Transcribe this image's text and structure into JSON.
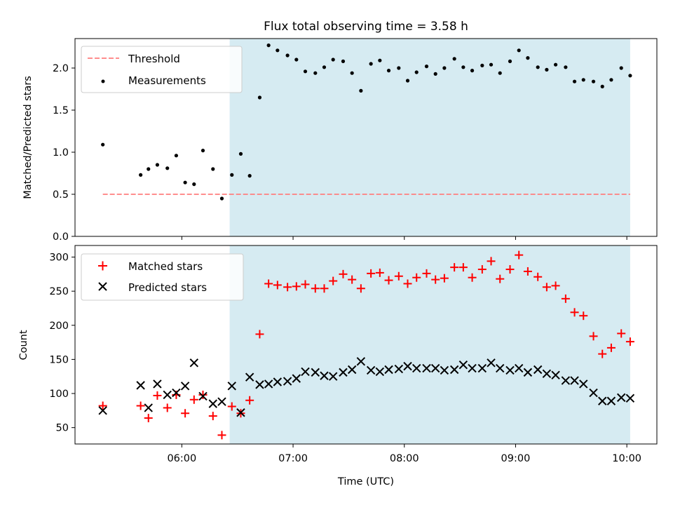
{
  "figure": {
    "title": "Flux total observing time = 3.58 h",
    "xlabel": "Time (UTC)"
  },
  "chart_data": [
    {
      "type": "scatter",
      "ylabel": "Matched/Predicted stars",
      "xlim_hours": [
        5.04,
        10.27
      ],
      "ylim": [
        0.0,
        2.35
      ],
      "yticks": [
        0.0,
        0.5,
        1.0,
        1.5,
        2.0
      ],
      "ytick_labels": [
        "0.0",
        "0.5",
        "1.0",
        "1.5",
        "2.0"
      ],
      "shaded_span_hours": [
        6.43,
        10.03
      ],
      "legend_position": "upper left",
      "threshold": {
        "name": "Threshold",
        "value": 0.5,
        "x_range_hours": [
          5.29,
          10.03
        ],
        "color": "#ff7f7f",
        "style": "dashed"
      },
      "series": [
        {
          "name": "Measurements",
          "color": "#000000",
          "marker": "dot",
          "x_hours": [
            5.29,
            5.63,
            5.7,
            5.78,
            5.87,
            5.95,
            6.03,
            6.11,
            6.19,
            6.28,
            6.36,
            6.45,
            6.53,
            6.61,
            6.7,
            6.78,
            6.86,
            6.95,
            7.03,
            7.11,
            7.2,
            7.28,
            7.36,
            7.45,
            7.53,
            7.61,
            7.7,
            7.78,
            7.86,
            7.95,
            8.03,
            8.11,
            8.2,
            8.28,
            8.36,
            8.45,
            8.53,
            8.61,
            8.7,
            8.78,
            8.86,
            8.95,
            9.03,
            9.11,
            9.2,
            9.28,
            9.36,
            9.45,
            9.53,
            9.61,
            9.7,
            9.78,
            9.86,
            9.95,
            10.03
          ],
          "y": [
            1.09,
            0.73,
            0.8,
            0.85,
            0.81,
            0.96,
            0.64,
            0.62,
            1.02,
            0.8,
            0.45,
            0.73,
            0.98,
            0.72,
            1.65,
            2.27,
            2.21,
            2.15,
            2.1,
            1.96,
            1.94,
            2.01,
            2.1,
            2.08,
            1.94,
            1.73,
            2.05,
            2.09,
            1.97,
            2.0,
            1.85,
            1.95,
            2.02,
            1.93,
            2.0,
            2.11,
            2.01,
            1.97,
            2.03,
            2.04,
            1.94,
            2.08,
            2.21,
            2.12,
            2.01,
            1.98,
            2.04,
            2.01,
            1.84,
            1.86,
            1.84,
            1.78,
            1.86,
            2.0,
            1.91
          ]
        }
      ]
    },
    {
      "type": "scatter",
      "ylabel": "Count",
      "xlim_hours": [
        5.04,
        10.27
      ],
      "ylim": [
        26,
        317
      ],
      "yticks": [
        50,
        100,
        150,
        200,
        250,
        300
      ],
      "ytick_labels": [
        "50",
        "100",
        "150",
        "200",
        "250",
        "300"
      ],
      "xticks_hours": [
        6,
        7,
        8,
        9,
        10
      ],
      "xtick_labels": [
        "06:00",
        "07:00",
        "08:00",
        "09:00",
        "10:00"
      ],
      "shaded_span_hours": [
        6.43,
        10.03
      ],
      "legend_position": "upper left",
      "series": [
        {
          "name": "Matched stars",
          "color": "#ff0000",
          "marker": "plus",
          "x_hours": [
            5.29,
            5.63,
            5.7,
            5.78,
            5.87,
            5.95,
            6.03,
            6.11,
            6.19,
            6.28,
            6.36,
            6.45,
            6.53,
            6.61,
            6.7,
            6.78,
            6.86,
            6.95,
            7.03,
            7.11,
            7.2,
            7.28,
            7.36,
            7.45,
            7.53,
            7.61,
            7.7,
            7.78,
            7.86,
            7.95,
            8.03,
            8.11,
            8.2,
            8.28,
            8.36,
            8.45,
            8.53,
            8.61,
            8.7,
            8.78,
            8.86,
            8.95,
            9.03,
            9.11,
            9.2,
            9.28,
            9.36,
            9.45,
            9.53,
            9.61,
            9.7,
            9.78,
            9.86,
            9.95,
            10.03
          ],
          "y": [
            82,
            82,
            64,
            97,
            79,
            98,
            71,
            91,
            98,
            67,
            39,
            81,
            71,
            90,
            187,
            261,
            259,
            256,
            257,
            260,
            254,
            254,
            265,
            275,
            267,
            254,
            276,
            277,
            266,
            272,
            261,
            270,
            276,
            267,
            269,
            285,
            285,
            270,
            282,
            294,
            268,
            282,
            303,
            279,
            271,
            256,
            258,
            239,
            219,
            214,
            184,
            158,
            167,
            188,
            176
          ]
        },
        {
          "name": "Predicted stars",
          "color": "#000000",
          "marker": "x",
          "x_hours": [
            5.29,
            5.63,
            5.7,
            5.78,
            5.87,
            5.95,
            6.03,
            6.11,
            6.19,
            6.28,
            6.36,
            6.45,
            6.53,
            6.61,
            6.7,
            6.78,
            6.86,
            6.95,
            7.03,
            7.11,
            7.2,
            7.28,
            7.36,
            7.45,
            7.53,
            7.61,
            7.7,
            7.78,
            7.86,
            7.95,
            8.03,
            8.11,
            8.2,
            8.28,
            8.36,
            8.45,
            8.53,
            8.61,
            8.7,
            8.78,
            8.86,
            8.95,
            9.03,
            9.11,
            9.2,
            9.28,
            9.36,
            9.45,
            9.53,
            9.61,
            9.7,
            9.78,
            9.86,
            9.95,
            10.03
          ],
          "y": [
            75,
            112,
            79,
            114,
            98,
            101,
            111,
            145,
            96,
            85,
            88,
            111,
            72,
            124,
            113,
            114,
            117,
            118,
            122,
            132,
            131,
            126,
            125,
            131,
            135,
            147,
            134,
            132,
            135,
            136,
            140,
            137,
            137,
            137,
            134,
            135,
            142,
            137,
            137,
            145,
            137,
            134,
            137,
            131,
            135,
            129,
            127,
            119,
            119,
            114,
            101,
            89,
            89,
            94,
            93
          ]
        }
      ]
    }
  ]
}
